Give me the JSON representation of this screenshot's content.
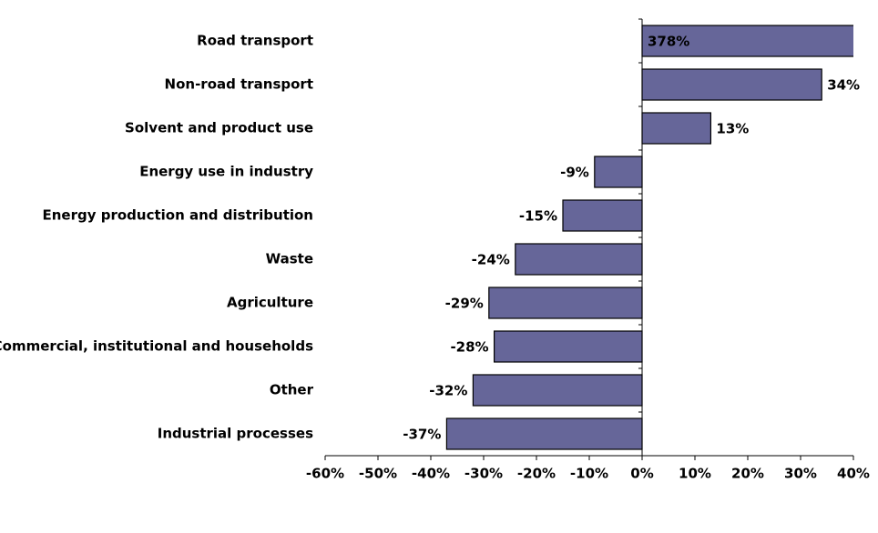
{
  "chart_data": {
    "type": "hbar",
    "categories": [
      "Road transport",
      "Non-road transport",
      "Solvent and product use",
      "Energy use in industry",
      "Energy production and distribution",
      "Waste",
      "Agriculture",
      "Commercial, institutional and households",
      "Other",
      "Industrial processes"
    ],
    "values": [
      378,
      34,
      13,
      -9,
      -15,
      -24,
      -29,
      -28,
      -32,
      -37
    ],
    "value_labels": [
      "378%",
      "34%",
      "13%",
      "-9%",
      "-15%",
      "-24%",
      "-29%",
      "-28%",
      "-32%",
      "-37%"
    ],
    "color": "#666699",
    "xlim": [
      -60,
      40
    ],
    "xticks": [
      {
        "value": -60,
        "label": "-60%"
      },
      {
        "value": -50,
        "label": "-50%"
      },
      {
        "value": -40,
        "label": "-40%"
      },
      {
        "value": -30,
        "label": "-30%"
      },
      {
        "value": -20,
        "label": "-20%"
      },
      {
        "value": -10,
        "label": "-10%"
      },
      {
        "value": 0,
        "label": "0%"
      },
      {
        "value": 10,
        "label": "10%"
      },
      {
        "value": 20,
        "label": "20%"
      },
      {
        "value": 30,
        "label": "30%"
      },
      {
        "value": 40,
        "label": "40%"
      }
    ],
    "grid": false
  }
}
